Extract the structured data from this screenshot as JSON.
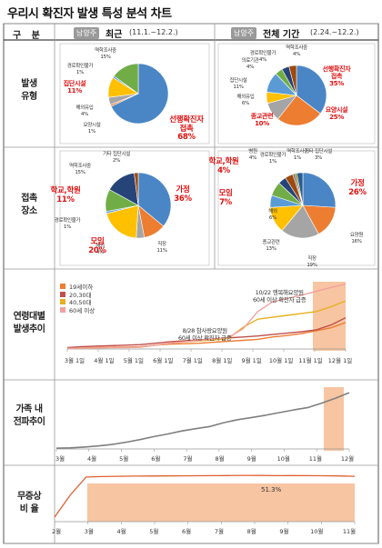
{
  "title": "우리시 확진자 발생 특성 분석 차트",
  "header": {
    "gubun": "구 분",
    "badge_left": "남양주",
    "recent_label": "최근",
    "recent_range": "(11.1.~12.2.)",
    "badge_right": "남양주",
    "all_label": "전체 기간",
    "all_range": "(2.24.~12.2.)"
  },
  "rows": {
    "occurrence": "발생\n유형",
    "contact": "접촉\n장소",
    "age": "연령대별\n발생추이",
    "family": "가족 내\n전파추이",
    "asymptomatic": "무증상\n비 율"
  },
  "colors": {
    "blue": "#4a86c5",
    "orange": "#ec7d31",
    "gray": "#a5a5a5",
    "yellow": "#ffc000",
    "lightblue": "#5b9bd5",
    "green": "#70ad47",
    "navy": "#264478",
    "brown": "#9e480e",
    "darkgray": "#636363",
    "highlight": "#f4b183"
  },
  "chart_data": [
    {
      "type": "pie",
      "title": "발생 유형 (최근)",
      "slices": [
        {
          "label": "선행확진자 접촉",
          "value": 68,
          "color": "#4a86c5",
          "text": "선행확진자\n접촉\n68%",
          "highlight": true
        },
        {
          "label": "요양시설",
          "value": 1,
          "color": "#ec7d31",
          "text": "요양시설\n1%"
        },
        {
          "label": "해외유입",
          "value": 4,
          "color": "#a5a5a5",
          "text": "해외유입\n4%"
        },
        {
          "label": "집단시설",
          "value": 11,
          "color": "#ffc000",
          "text": "집단시설\n11%",
          "highlight": true
        },
        {
          "label": "경로확인불가",
          "value": 1,
          "color": "#5b9bd5",
          "text": "경로확인불가\n1%"
        },
        {
          "label": "역학조사중",
          "value": 15,
          "color": "#70ad47",
          "text": "역학조사중\n15%"
        }
      ]
    },
    {
      "type": "pie",
      "title": "발생 유형 (전체 기간)",
      "slices": [
        {
          "label": "선행확진자 접촉",
          "value": 35,
          "color": "#4a86c5",
          "text": "선행확진자\n접촉\n35%",
          "highlight": true
        },
        {
          "label": "요양시설",
          "value": 25,
          "color": "#ec7d31",
          "text": "요양시설\n25%",
          "highlight": true
        },
        {
          "label": "종교관련",
          "value": 10,
          "color": "#a5a5a5",
          "text": "종교관련\n10%",
          "highlight": true
        },
        {
          "label": "해외유입",
          "value": 6,
          "color": "#ffc000",
          "text": "해외유입\n6%"
        },
        {
          "label": "집단시설",
          "value": 11,
          "color": "#5b9bd5",
          "text": "집단시설\n11%"
        },
        {
          "label": "의료기관",
          "value": 4,
          "color": "#70ad47",
          "text": "의료기관\n4%"
        },
        {
          "label": "경로확인불가",
          "value": 4,
          "color": "#264478",
          "text": "경로확인불가\n4%"
        },
        {
          "label": "역학조사중",
          "value": 4,
          "color": "#9e480e",
          "text": "역학조사중\n4%"
        }
      ]
    },
    {
      "type": "pie",
      "title": "접촉 장소 (최근)",
      "slices": [
        {
          "label": "가정",
          "value": 36,
          "color": "#4a86c5",
          "text": "가정\n36%",
          "highlight": true
        },
        {
          "label": "직장",
          "value": 11,
          "color": "#ec7d31",
          "text": "직장\n11%"
        },
        {
          "label": "해외",
          "value": 4,
          "color": "#a5a5a5",
          "text": "해외\n4%"
        },
        {
          "label": "모임",
          "value": 20,
          "color": "#ffc000",
          "text": "모임\n20%",
          "highlight": true
        },
        {
          "label": "경로확인불가",
          "value": 1,
          "color": "#5b9bd5",
          "text": "경로확인불가\n1%"
        },
        {
          "label": "학교,학원",
          "value": 11,
          "color": "#70ad47",
          "text": "학교,학원\n11%",
          "highlight": true
        },
        {
          "label": "역학조사중",
          "value": 15,
          "color": "#264478",
          "text": "역학조사중\n15%"
        },
        {
          "label": "기타 집단시설",
          "value": 2,
          "color": "#9e480e",
          "text": "기타 집단시설\n2%"
        }
      ]
    },
    {
      "type": "pie",
      "title": "접촉 장소 (전체 기간)",
      "slices": [
        {
          "label": "가정",
          "value": 26,
          "color": "#4a86c5",
          "text": "가정\n26%",
          "highlight": true
        },
        {
          "label": "요양원",
          "value": 16,
          "color": "#ec7d31",
          "text": "요양원\n16%"
        },
        {
          "label": "직장",
          "value": 19,
          "color": "#a5a5a5",
          "text": "직장\n19%"
        },
        {
          "label": "종교관련",
          "value": 13,
          "color": "#ffc000",
          "text": "종교관련\n13%"
        },
        {
          "label": "해외",
          "value": 6,
          "color": "#5b9bd5",
          "text": "해외\n6%"
        },
        {
          "label": "모임",
          "value": 7,
          "color": "#70ad47",
          "text": "모임\n7%",
          "highlight": true
        },
        {
          "label": "학교,학원",
          "value": 4,
          "color": "#264478",
          "text": "학교,학원\n4%",
          "highlight": true
        },
        {
          "label": "병원",
          "value": 4,
          "color": "#9e480e",
          "text": "병원\n4%"
        },
        {
          "label": "경로확인불가",
          "value": 1,
          "color": "#636363",
          "text": "경로확인불가\n1%"
        },
        {
          "label": "역학조사중",
          "value": 1,
          "color": "#997300",
          "text": "역학조사중\n1%"
        },
        {
          "label": "기타 집단시설",
          "value": 3,
          "color": "#255e91",
          "text": "기타 집단시설\n3%"
        }
      ]
    },
    {
      "type": "line",
      "title": "연령대별 발생추이",
      "x_labels": [
        "3월 1일",
        "4월 1일",
        "5월 1일",
        "6월 1일",
        "7월 1일",
        "8월 1일",
        "9월 1일",
        "10월 1일",
        "11월 1일",
        "12월 1일"
      ],
      "series": [
        {
          "name": "19세이하",
          "color": "#ec7d31",
          "values": [
            2,
            3,
            3,
            4,
            4,
            5,
            8,
            10,
            11,
            12,
            14,
            16,
            18,
            20,
            25,
            28,
            32,
            38,
            44,
            55
          ]
        },
        {
          "name": "20,30대",
          "color": "#c0504d",
          "values": [
            3,
            5,
            6,
            7,
            8,
            9,
            12,
            15,
            17,
            19,
            21,
            23,
            25,
            27,
            30,
            33,
            36,
            40,
            50,
            65
          ]
        },
        {
          "name": "40,50대",
          "color": "#e6b020",
          "values": [
            1,
            2,
            2,
            3,
            3,
            4,
            8,
            12,
            15,
            17,
            19,
            22,
            45,
            62,
            66,
            70,
            74,
            78,
            88,
            100
          ]
        },
        {
          "name": "60세 이상",
          "color": "#f2a0a0",
          "values": [
            1,
            2,
            2,
            3,
            3,
            4,
            8,
            12,
            15,
            18,
            21,
            24,
            42,
            78,
            98,
            105,
            112,
            120,
            128,
            135
          ]
        }
      ],
      "highlight_range": [
        "11월 1일",
        "12월 1일"
      ],
      "annotations": [
        {
          "text": "8/28 참사랑요양원\n60세 이상 확진자 급증"
        },
        {
          "text": "10/22 행복해요양원\n60세 이상 확진자 급증"
        }
      ]
    },
    {
      "type": "line",
      "title": "가족 내 전파추이",
      "x_labels": [
        "3월",
        "4월",
        "5월",
        "6월",
        "7월",
        "8월",
        "9월",
        "10월",
        "11월",
        "12월"
      ],
      "series": [
        {
          "name": "가족 내 전파",
          "color": "#7f7f7f",
          "values": [
            2,
            3,
            5,
            8,
            12,
            18,
            25,
            33,
            40,
            48,
            54,
            60,
            70,
            78,
            84,
            90,
            97,
            104,
            110,
            122,
            135,
            150
          ]
        }
      ],
      "highlight_range": [
        "11월",
        "12월"
      ]
    },
    {
      "type": "line",
      "title": "무증상 비율",
      "x_labels": [
        "2월",
        "3월",
        "4월",
        "5월",
        "6월",
        "7월",
        "8월",
        "9월",
        "10월",
        "11월"
      ],
      "series": [
        {
          "name": "무증상 비율",
          "color": "#e06030",
          "values": [
            5,
            30,
            50,
            50.5,
            50.8,
            51,
            51.1,
            51.2,
            51.3,
            51.4,
            51.5,
            51.6,
            51.8,
            51.7,
            51.5,
            51.6,
            51.5,
            51.4,
            51.2,
            50.8
          ]
        }
      ],
      "highlight_range": [
        "3월",
        "11월"
      ],
      "data_labels": [
        "51.3%"
      ]
    }
  ]
}
